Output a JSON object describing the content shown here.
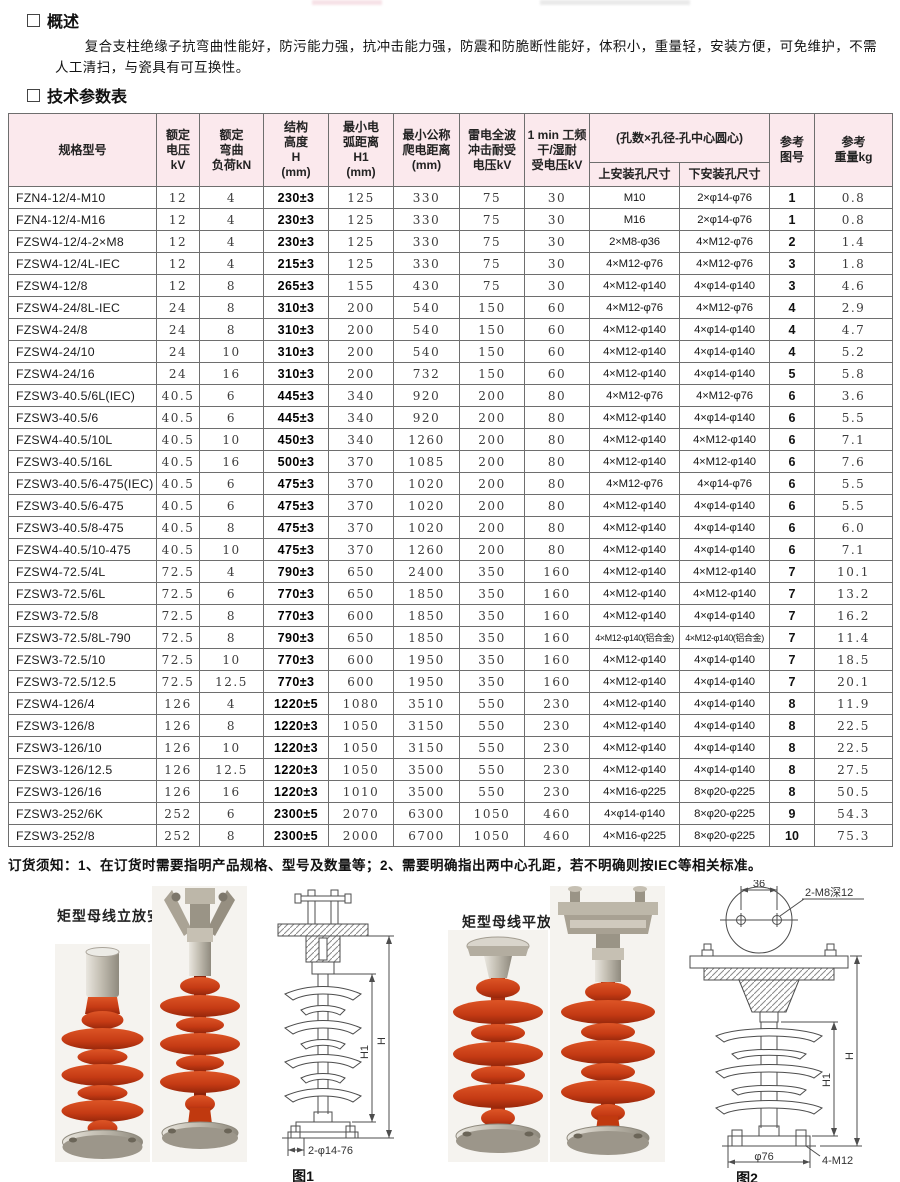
{
  "overview": {
    "title": "概述",
    "text": "复合支柱绝缘子抗弯曲性能好，防污能力强，抗冲击能力强，防震和防脆断性能好，体积小，重量轻，安装方便，可免维护，不需人工清扫，与瓷具有可互换性。"
  },
  "params": {
    "title": "技术参数表"
  },
  "note": "订货须知：1、在订货时需要指明产品规格、型号及数量等；2、需要明确指出两中心孔距，若不明确则按IEC等相关标准。",
  "colors": {
    "header_bg": "#fbe9ed",
    "grid_line": "#6e6e6e",
    "insulator_red": "#c93b15",
    "metal": "#b5ae9f"
  },
  "table": {
    "headers": {
      "model": "规格型号",
      "voltage": "额定\n电压\nkV",
      "bend": "额定\n弯曲\n负荷kN",
      "height": "结构\n高度\nH\n(mm)",
      "arc": "最小电\n弧距离\nH1\n(mm)",
      "creep": "最小公称\n爬电距离\n(mm)",
      "impulse": "雷电全波\n冲击耐受\n电压kV",
      "pf": "1 min 工频\n干/湿耐\n受电压kV",
      "holes_group": "(孔数×孔径-孔中心圆心)",
      "upper_hole": "上安装孔尺寸",
      "lower_hole": "下安装孔尺寸",
      "fig": "参考\n图号",
      "weight": "参考\n重量kg"
    },
    "rows": [
      [
        "FZN4-12/4-M10",
        "12",
        "4",
        "230±3",
        "125",
        "330",
        "75",
        "30",
        "M10",
        "2×φ14-φ76",
        "1",
        "0.8"
      ],
      [
        "FZN4-12/4-M16",
        "12",
        "4",
        "230±3",
        "125",
        "330",
        "75",
        "30",
        "M16",
        "2×φ14-φ76",
        "1",
        "0.8"
      ],
      [
        "FZSW4-12/4-2×M8",
        "12",
        "4",
        "230±3",
        "125",
        "330",
        "75",
        "30",
        "2×M8-φ36",
        "4×M12-φ76",
        "2",
        "1.4"
      ],
      [
        "FZSW4-12/4L-IEC",
        "12",
        "4",
        "215±3",
        "125",
        "330",
        "75",
        "30",
        "4×M12-φ76",
        "4×M12-φ76",
        "3",
        "1.8"
      ],
      [
        "FZSW4-12/8",
        "12",
        "8",
        "265±3",
        "155",
        "430",
        "75",
        "30",
        "4×M12-φ140",
        "4×φ14-φ140",
        "3",
        "4.6"
      ],
      [
        "FZSW4-24/8L-IEC",
        "24",
        "8",
        "310±3",
        "200",
        "540",
        "150",
        "60",
        "4×M12-φ76",
        "4×M12-φ76",
        "4",
        "2.9"
      ],
      [
        "FZSW4-24/8",
        "24",
        "8",
        "310±3",
        "200",
        "540",
        "150",
        "60",
        "4×M12-φ140",
        "4×φ14-φ140",
        "4",
        "4.7"
      ],
      [
        "FZSW4-24/10",
        "24",
        "10",
        "310±3",
        "200",
        "540",
        "150",
        "60",
        "4×M12-φ140",
        "4×φ14-φ140",
        "4",
        "5.2"
      ],
      [
        "FZSW4-24/16",
        "24",
        "16",
        "310±3",
        "200",
        "732",
        "150",
        "60",
        "4×M12-φ140",
        "4×φ14-φ140",
        "5",
        "5.8"
      ],
      [
        "FZSW3-40.5/6L(IEC)",
        "40.5",
        "6",
        "445±3",
        "340",
        "920",
        "200",
        "80",
        "4×M12-φ76",
        "4×M12-φ76",
        "6",
        "3.6"
      ],
      [
        "FZSW3-40.5/6",
        "40.5",
        "6",
        "445±3",
        "340",
        "920",
        "200",
        "80",
        "4×M12-φ140",
        "4×φ14-φ140",
        "6",
        "5.5"
      ],
      [
        "FZSW4-40.5/10L",
        "40.5",
        "10",
        "450±3",
        "340",
        "1260",
        "200",
        "80",
        "4×M12-φ140",
        "4×M12-φ140",
        "6",
        "7.1"
      ],
      [
        "FZSW3-40.5/16L",
        "40.5",
        "16",
        "500±3",
        "370",
        "1085",
        "200",
        "80",
        "4×M12-φ140",
        "4×M12-φ140",
        "6",
        "7.6"
      ],
      [
        "FZSW3-40.5/6-475(IEC)",
        "40.5",
        "6",
        "475±3",
        "370",
        "1020",
        "200",
        "80",
        "4×M12-φ76",
        "4×φ14-φ76",
        "6",
        "5.5"
      ],
      [
        "FZSW3-40.5/6-475",
        "40.5",
        "6",
        "475±3",
        "370",
        "1020",
        "200",
        "80",
        "4×M12-φ140",
        "4×φ14-φ140",
        "6",
        "5.5"
      ],
      [
        "FZSW3-40.5/8-475",
        "40.5",
        "8",
        "475±3",
        "370",
        "1020",
        "200",
        "80",
        "4×M12-φ140",
        "4×φ14-φ140",
        "6",
        "6.0"
      ],
      [
        "FZSW4-40.5/10-475",
        "40.5",
        "10",
        "475±3",
        "370",
        "1260",
        "200",
        "80",
        "4×M12-φ140",
        "4×φ14-φ140",
        "6",
        "7.1"
      ],
      [
        "FZSW4-72.5/4L",
        "72.5",
        "4",
        "790±3",
        "650",
        "2400",
        "350",
        "160",
        "4×M12-φ140",
        "4×M12-φ140",
        "7",
        "10.1"
      ],
      [
        "FZSW3-72.5/6L",
        "72.5",
        "6",
        "770±3",
        "650",
        "1850",
        "350",
        "160",
        "4×M12-φ140",
        "4×M12-φ140",
        "7",
        "13.2"
      ],
      [
        "FZSW3-72.5/8",
        "72.5",
        "8",
        "770±3",
        "600",
        "1850",
        "350",
        "160",
        "4×M12-φ140",
        "4×φ14-φ140",
        "7",
        "16.2"
      ],
      [
        "FZSW3-72.5/8L-790",
        "72.5",
        "8",
        "790±3",
        "650",
        "1850",
        "350",
        "160",
        "4×M12-φ140(铝合金)",
        "4×M12-φ140(铝合金)",
        "7",
        "11.4"
      ],
      [
        "FZSW3-72.5/10",
        "72.5",
        "10",
        "770±3",
        "600",
        "1950",
        "350",
        "160",
        "4×M12-φ140",
        "4×φ14-φ140",
        "7",
        "18.5"
      ],
      [
        "FZSW3-72.5/12.5",
        "72.5",
        "12.5",
        "770±3",
        "600",
        "1950",
        "350",
        "160",
        "4×M12-φ140",
        "4×φ14-φ140",
        "7",
        "20.1"
      ],
      [
        "FZSW4-126/4",
        "126",
        "4",
        "1220±5",
        "1080",
        "3510",
        "550",
        "230",
        "4×M12-φ140",
        "4×φ14-φ140",
        "8",
        "11.9"
      ],
      [
        "FZSW3-126/8",
        "126",
        "8",
        "1220±3",
        "1050",
        "3150",
        "550",
        "230",
        "4×M12-φ140",
        "4×φ14-φ140",
        "8",
        "22.5"
      ],
      [
        "FZSW3-126/10",
        "126",
        "10",
        "1220±3",
        "1050",
        "3150",
        "550",
        "230",
        "4×M12-φ140",
        "4×φ14-φ140",
        "8",
        "22.5"
      ],
      [
        "FZSW3-126/12.5",
        "126",
        "12.5",
        "1220±3",
        "1050",
        "3500",
        "550",
        "230",
        "4×M12-φ140",
        "4×φ14-φ140",
        "8",
        "27.5"
      ],
      [
        "FZSW3-126/16",
        "126",
        "16",
        "1220±3",
        "1010",
        "3500",
        "550",
        "230",
        "4×M16-φ225",
        "8×φ20-φ225",
        "8",
        "50.5"
      ],
      [
        "FZSW3-252/6K",
        "252",
        "6",
        "2300±5",
        "2070",
        "6300",
        "1050",
        "460",
        "4×φ14-φ140",
        "8×φ20-φ225",
        "9",
        "54.3"
      ],
      [
        "FZSW3-252/8",
        "252",
        "8",
        "2300±5",
        "2000",
        "6700",
        "1050",
        "460",
        "4×M16-φ225",
        "8×φ20-φ225",
        "10",
        "75.3"
      ]
    ]
  },
  "figures": {
    "left": {
      "title": "矩型母线立放安装",
      "caption": "图1",
      "dim_h1": "H1",
      "dim_h": "H",
      "dim_bottom": "2-φ14-76"
    },
    "right": {
      "title": "矩型母线平放安装",
      "caption": "图2",
      "dim_top_width": "36",
      "dim_top_holes": "2-M8深12",
      "dim_h1": "H1",
      "dim_h": "H",
      "dim_phi": "φ76",
      "dim_bolts": "4-M12"
    }
  }
}
